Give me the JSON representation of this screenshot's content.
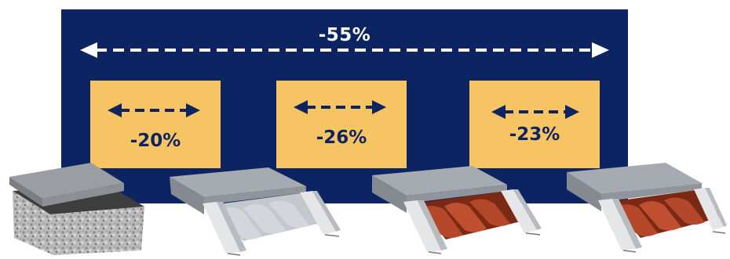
{
  "total_reduction": {
    "label": "-55%"
  },
  "steps": [
    {
      "label": "-20%"
    },
    {
      "label": "-26%"
    },
    {
      "label": "-23%"
    }
  ],
  "colors": {
    "banner": "#0c2461",
    "box": "#f7c463",
    "total_text": "#ffffff",
    "step_text": "#0c2461"
  }
}
